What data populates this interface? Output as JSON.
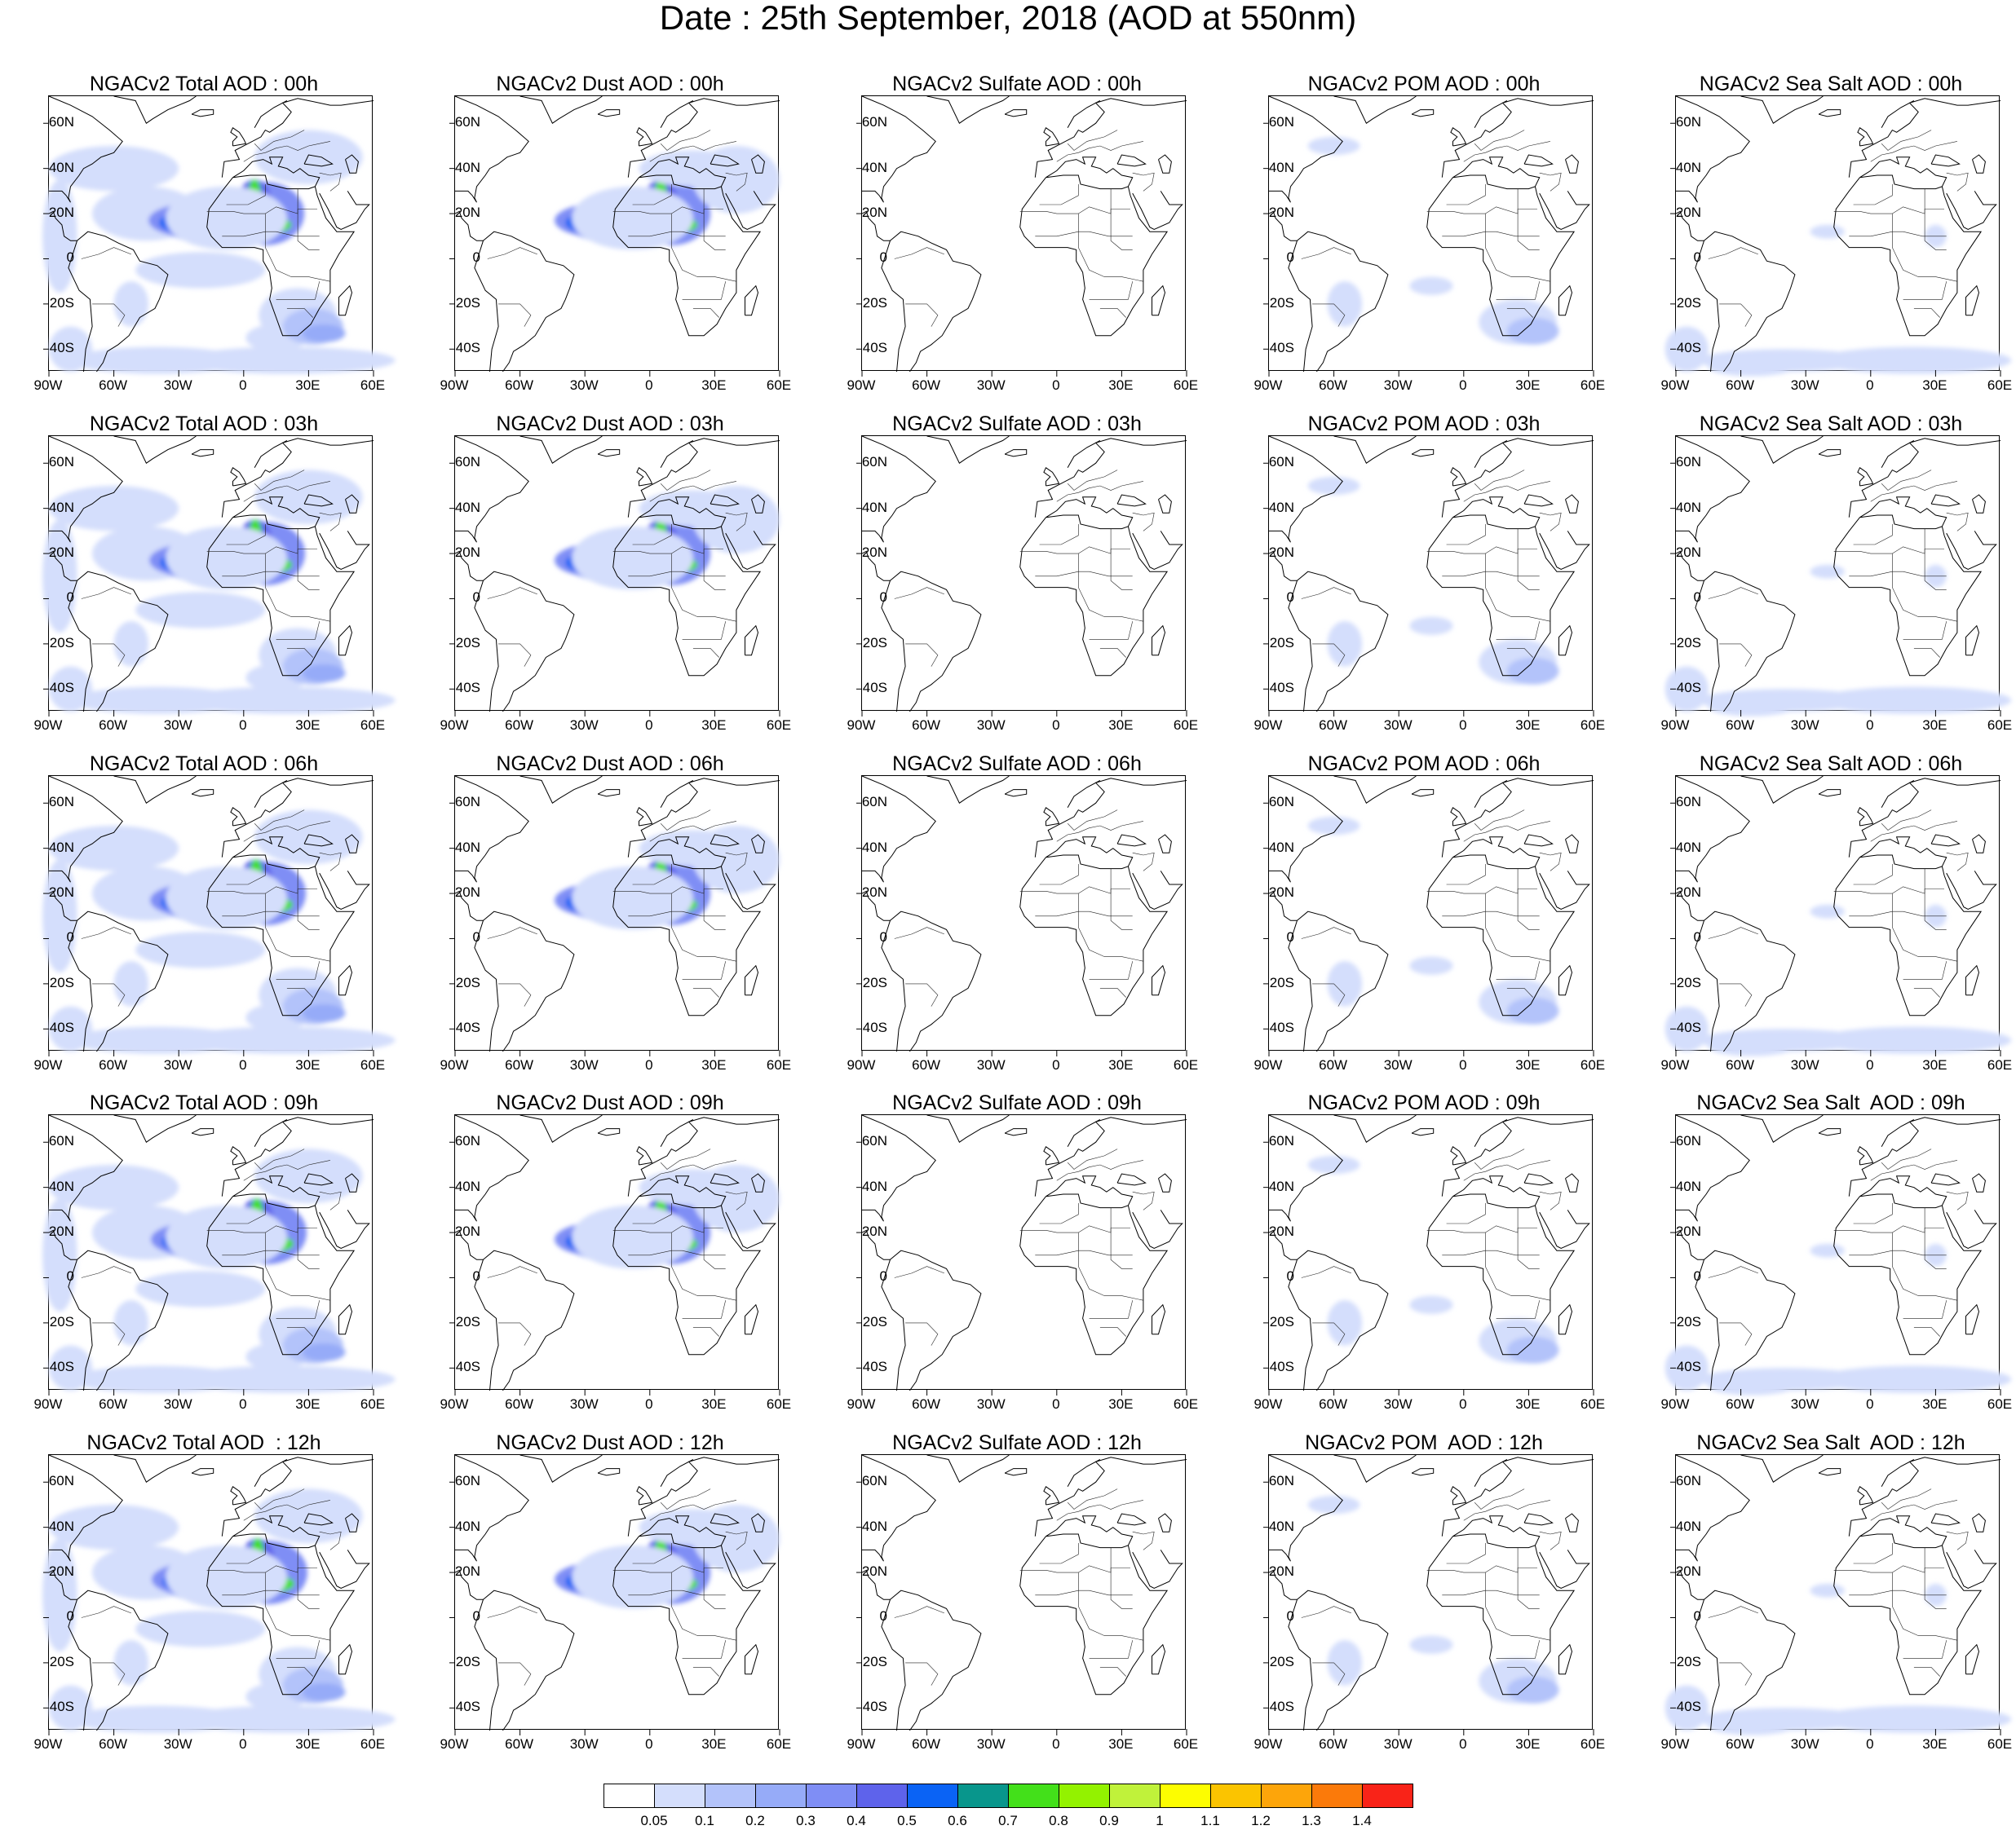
{
  "page_title": "Date : 25th September, 2018 (AOD at 550nm)",
  "lat_ticks": [
    "60N",
    "40N",
    "20N",
    "0",
    "20S",
    "40S"
  ],
  "lon_ticks": [
    "90W",
    "60W",
    "30W",
    "0",
    "30E",
    "60E"
  ],
  "species": [
    {
      "key": "total",
      "intensity": 1.0
    },
    {
      "key": "dust",
      "intensity": 0.95
    },
    {
      "key": "sulfate",
      "intensity": 0.0
    },
    {
      "key": "pom",
      "intensity": 0.5
    },
    {
      "key": "seasalt",
      "intensity": 0.35
    }
  ],
  "panel_titles": [
    [
      "NGACv2 Total AOD : 00h",
      "NGACv2 Dust AOD : 00h",
      "NGACv2 Sulfate AOD : 00h",
      "NGACv2 POM AOD : 00h",
      "NGACv2 Sea Salt AOD : 00h"
    ],
    [
      "NGACv2 Total AOD : 03h",
      "NGACv2 Dust AOD : 03h",
      "NGACv2 Sulfate AOD : 03h",
      "NGACv2 POM AOD : 03h",
      "NGACv2 Sea Salt AOD : 03h"
    ],
    [
      "NGACv2 Total AOD : 06h",
      "NGACv2 Dust AOD : 06h",
      "NGACv2 Sulfate AOD : 06h",
      "NGACv2 POM AOD : 06h",
      "NGACv2 Sea Salt AOD : 06h"
    ],
    [
      "NGACv2 Total AOD : 09h",
      "NGACv2 Dust AOD : 09h",
      "NGACv2 Sulfate AOD : 09h",
      "NGACv2 POM AOD : 09h",
      "NGACv2 Sea Salt  AOD : 09h"
    ],
    [
      "NGACv2 Total AOD  : 12h",
      "NGACv2 Dust AOD : 12h",
      "NGACv2 Sulfate AOD : 12h",
      "NGACv2 POM  AOD : 12h",
      "NGACv2 Sea Salt  AOD : 12h"
    ]
  ],
  "colorbar": {
    "colors": [
      "#ffffff",
      "#d4defc",
      "#b3c3fa",
      "#96abf8",
      "#7f8ef5",
      "#5e63eb",
      "#0a63f5",
      "#08968c",
      "#43e01a",
      "#93f200",
      "#c0f23a",
      "#fdfd00",
      "#fbc400",
      "#fda50a",
      "#fb7a0a",
      "#f92318"
    ],
    "labels": [
      "0.05",
      "0.1",
      "0.2",
      "0.3",
      "0.4",
      "0.5",
      "0.6",
      "0.7",
      "0.8",
      "0.9",
      "1",
      "1.1",
      "1.2",
      "1.3",
      "1.4"
    ]
  }
}
